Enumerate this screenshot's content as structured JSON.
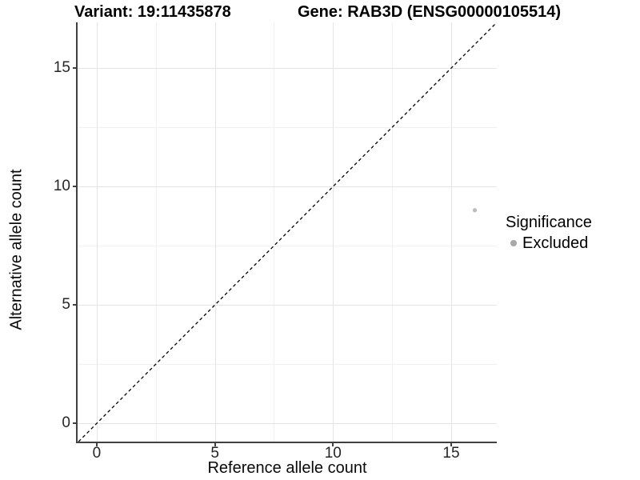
{
  "chart_data": {
    "type": "scatter",
    "titles": {
      "left": "Variant: 19:11435878",
      "right": "Gene: RAB3D (ENSG00000105514)"
    },
    "xlabel": "Reference allele count",
    "ylabel": "Alternative allele count",
    "x_ticks": [
      0,
      5,
      10,
      15
    ],
    "y_ticks": [
      0,
      5,
      10,
      15
    ],
    "x_minor_ticks": [
      2.5,
      7.5,
      12.5
    ],
    "y_minor_ticks": [
      2.5,
      7.5,
      12.5
    ],
    "xlim": [
      -0.81,
      16.93
    ],
    "ylim": [
      -0.77,
      16.93
    ],
    "grid": true,
    "identity_line": {
      "style": "dashed",
      "x1": -0.77,
      "y1": -0.77,
      "x2": 16.93,
      "y2": 16.93,
      "color": "#000000"
    },
    "series": [
      {
        "name": "Excluded",
        "color": "#bcbcbc",
        "point_radius": 2.6,
        "points": [
          {
            "x": 16,
            "y": 9
          }
        ]
      }
    ],
    "legend": {
      "position": "right",
      "title": "Significance",
      "items": [
        {
          "label": "Excluded",
          "key_color": "#a8a8a8"
        }
      ]
    },
    "colors": {
      "background": "#ffffff",
      "grid_major": "#e4e4e4",
      "grid_minor": "#f1f1f1",
      "axis_line": "#404040",
      "tick_text": "#262626"
    }
  }
}
